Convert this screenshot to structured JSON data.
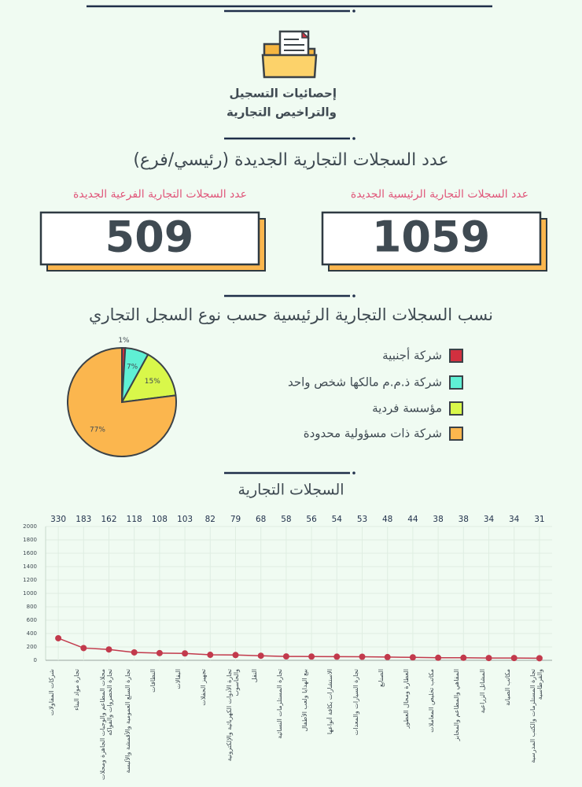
{
  "header": {
    "title_lines": [
      "إحصائيات التسجيل",
      "والتراخيص التجارية"
    ]
  },
  "kpi": {
    "title": "عدد السجلات التجارية الجديدة (رئيسي/فرع)",
    "items": [
      {
        "label": "عدد السجلات التجارية الرئيسية الجديدة",
        "value": 1059
      },
      {
        "label": "عدد السجلات التجارية الفرعية الجديدة",
        "value": 509
      }
    ]
  },
  "chart_data": [
    {
      "type": "pie",
      "title": "نسب السجلات التجارية الرئيسية حسب نوع السجل التجاري",
      "categories": [
        "شركة أجنبية",
        "شركة ذ.م.م مالكها شخص واحد",
        "مؤسسة فردية",
        "شركة ذات مسؤولية محدودة"
      ],
      "values": [
        1,
        7,
        15,
        77
      ],
      "value_labels": [
        "1%",
        "7%",
        "15%",
        "77%"
      ],
      "colors": [
        "#d2303f",
        "#5ff0d4",
        "#d9f74a",
        "#fbb64e"
      ]
    },
    {
      "type": "line",
      "title": "السجلات التجارية",
      "categories": [
        "شركات المقاولات",
        "تجارة مواد البناء",
        "محلات المطاعم والوجبات الجاهزة ومحلات تجارة الخضروات والفواكه",
        "تجارة السلع العمومية والأقمشة والألبسة",
        "النظافات",
        "البقالات",
        "تجهيز الحفلات",
        "تجارة الأدوات الكهربائية والإلكترونية والحاسوب",
        "النقل",
        "تجارة المستلزمات النسائية",
        "بيع الهدايا ولعب الأطفال",
        "الاستشارات بكافة أنواعها",
        "تجارة السيارات والمعدات",
        "الصنايع",
        "العطارة ومحال العطور",
        "مكاتب تخليص المعاملات",
        "المقاهي والمطاعم والمخابز",
        "المشاتل الزراعية",
        "مكاتب الصيانة",
        "تجارة المستلزمات والكتب المدرسية والقرطاسية"
      ],
      "values": [
        330,
        183,
        162,
        118,
        108,
        103,
        82,
        79,
        68,
        58,
        56,
        54,
        53,
        48,
        44,
        38,
        38,
        34,
        34,
        31
      ],
      "color": "#c23a4c",
      "ylim": [
        0,
        2000
      ],
      "yticks": [
        0,
        200,
        400,
        600,
        800,
        1000,
        1200,
        1400,
        1600,
        1800,
        2000
      ],
      "grid": true
    }
  ]
}
